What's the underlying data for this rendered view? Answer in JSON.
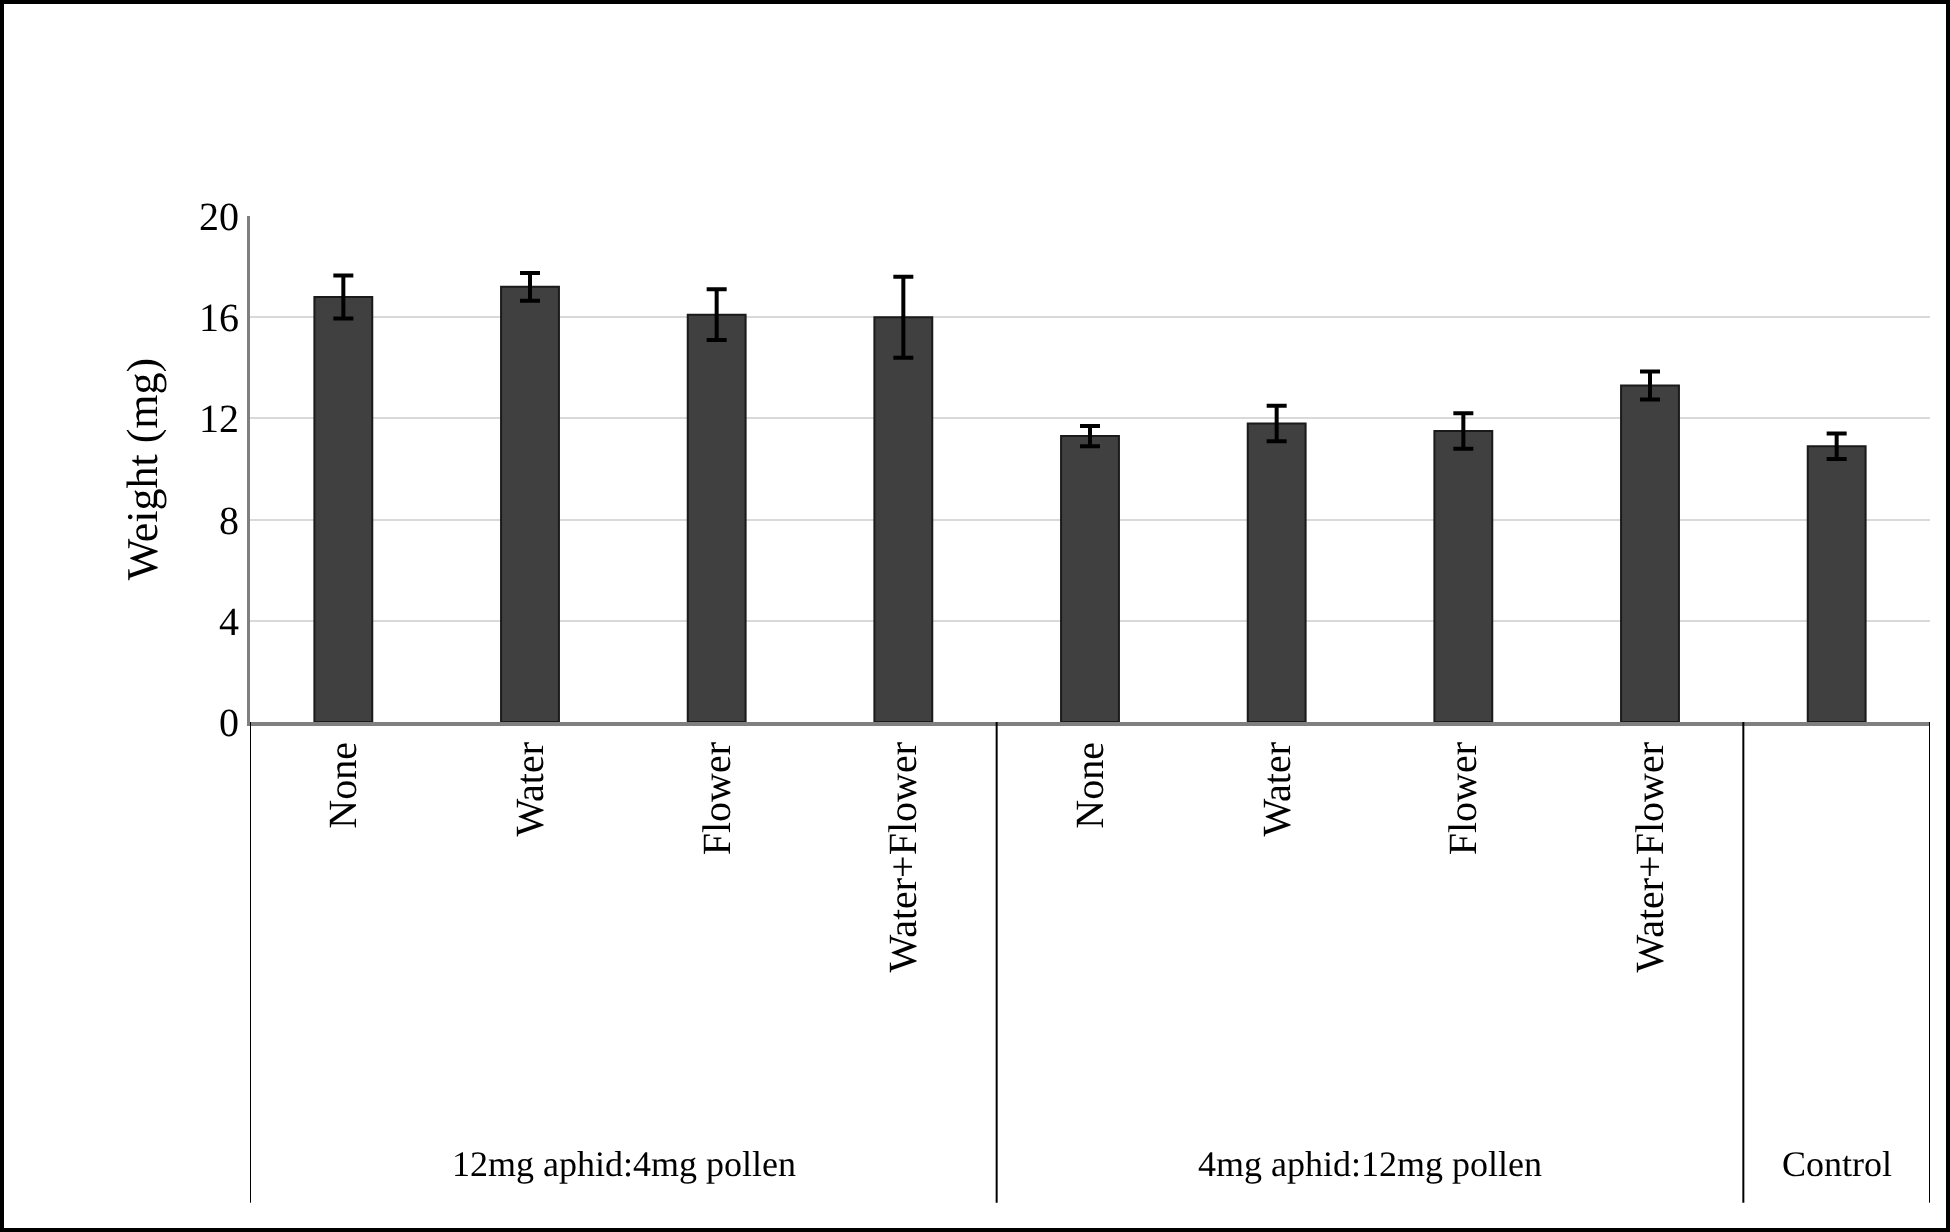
{
  "chart_data": {
    "type": "bar",
    "ylabel": "Weight (mg)",
    "categories": [
      "None",
      "Water",
      "Flower",
      "Water+Flower",
      "None",
      "Water",
      "Flower",
      "Water+Flower",
      null
    ],
    "values": [
      16.8,
      17.2,
      16.1,
      16.0,
      11.3,
      11.8,
      11.5,
      13.3,
      10.9
    ],
    "errors": [
      0.85,
      0.55,
      1.0,
      1.6,
      0.4,
      0.7,
      0.7,
      0.55,
      0.5
    ],
    "color": "#404040",
    "ylim": [
      0,
      20
    ],
    "yticks": [
      0,
      4,
      8,
      12,
      16,
      20
    ],
    "grid": "y",
    "annotations": [
      "12mg aphid:4mg pollen",
      "4mg aphid:12mg pollen",
      "Control"
    ]
  }
}
